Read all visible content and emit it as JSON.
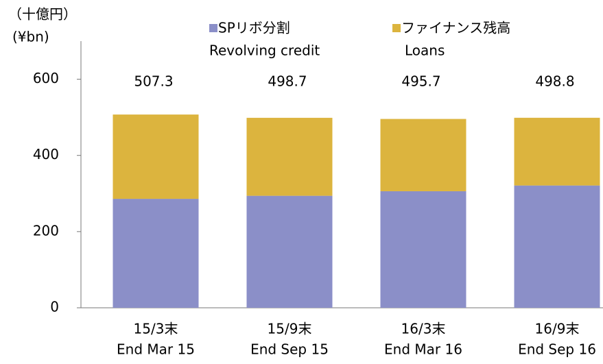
{
  "chart_data": {
    "type": "stacked_bar",
    "y_label": "（十億円）",
    "y_label_en": "(¥bn)",
    "categories": [
      "15/3末",
      "15/9末",
      "16/3末",
      "16/9末"
    ],
    "categories_en": [
      "End Mar 15",
      "End Sep 15",
      "End Mar 16",
      "End Sep 16"
    ],
    "series": [
      {
        "name": "SPリボ分割",
        "name_en": "Revolving credit",
        "color": "#8b8fc8",
        "values": [
          286,
          294,
          306,
          321
        ]
      },
      {
        "name": "ファイナンス残高",
        "name_en": "Loans",
        "color": "#dcb43e",
        "values": [
          221.3,
          204.7,
          189.7,
          177.8
        ]
      }
    ],
    "totals": [
      507.3,
      498.7,
      495.7,
      498.8
    ],
    "ylim": [
      0,
      700
    ],
    "yticks": [
      0,
      200,
      400,
      600
    ],
    "grid": false
  }
}
